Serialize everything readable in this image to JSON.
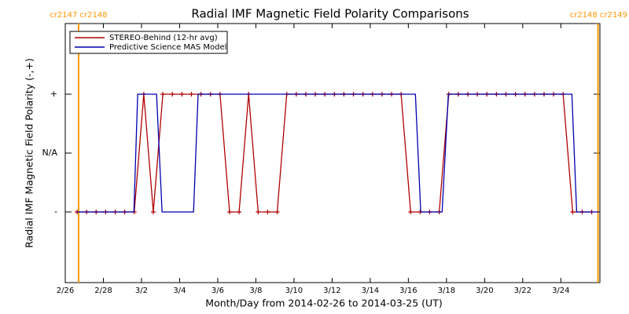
{
  "chart_data": {
    "type": "line",
    "title": "Radial IMF Magnetic Field Polarity Comparisons",
    "xlabel": "Month/Day from 2014-02-26 to 2014-03-25 (UT)",
    "ylabel": "Radial IMF Magnetic Field Polarity (-,+)",
    "xlim": [
      0,
      28.05
    ],
    "ylim": [
      -2.2,
      2.2
    ],
    "xticks": [
      {
        "value": 0,
        "label": "2/26"
      },
      {
        "value": 2,
        "label": "2/28"
      },
      {
        "value": 4,
        "label": "3/2"
      },
      {
        "value": 6,
        "label": "3/4"
      },
      {
        "value": 8,
        "label": "3/6"
      },
      {
        "value": 10,
        "label": "3/8"
      },
      {
        "value": 12,
        "label": "3/10"
      },
      {
        "value": 14,
        "label": "3/12"
      },
      {
        "value": 16,
        "label": "3/14"
      },
      {
        "value": 18,
        "label": "3/16"
      },
      {
        "value": 20,
        "label": "3/18"
      },
      {
        "value": 22,
        "label": "3/20"
      },
      {
        "value": 24,
        "label": "3/22"
      },
      {
        "value": 26,
        "label": "3/24"
      }
    ],
    "yticks": [
      {
        "value": 1,
        "label": "+"
      },
      {
        "value": 0,
        "label": "N/A"
      },
      {
        "value": -1,
        "label": "-"
      }
    ],
    "legend": "upper left",
    "cr_lines": [
      {
        "x": 0.7,
        "label": "cr2147 cr2148"
      },
      {
        "x": 27.95,
        "label": "cr2148 cr2149"
      }
    ],
    "cr_color": "#ff9900",
    "series": [
      {
        "name": "STEREO-Behind (12-hr avg)",
        "color": "#b00000",
        "markers": true,
        "x": [
          0.62,
          1.12,
          1.62,
          2.12,
          2.62,
          3.12,
          3.62,
          4.12,
          4.62,
          5.12,
          5.62,
          6.12,
          6.62,
          7.12,
          7.62,
          8.12,
          8.62,
          9.12,
          9.62,
          10.12,
          10.62,
          11.12,
          11.62,
          12.12,
          12.62,
          13.12,
          13.62,
          14.12,
          14.62,
          15.12,
          15.62,
          16.12,
          16.62,
          17.12,
          17.62,
          18.12,
          18.62,
          19.12,
          19.62,
          20.12,
          20.62,
          21.12,
          21.62,
          22.12,
          22.62,
          23.12,
          23.62,
          24.12,
          24.62,
          25.12,
          25.62,
          26.12,
          26.62,
          27.12,
          27.62
        ],
        "values": [
          -1,
          -1,
          -1,
          -1,
          -1,
          -1,
          -1,
          1,
          -1,
          1,
          1,
          1,
          1,
          1,
          1,
          1,
          -1,
          -1,
          1,
          -1,
          -1,
          -1,
          1,
          1,
          1,
          1,
          1,
          1,
          1,
          1,
          1,
          1,
          1,
          1,
          1,
          -1,
          -1,
          -1,
          -1,
          1,
          1,
          1,
          1,
          1,
          1,
          1,
          1,
          1,
          1,
          1,
          1,
          1,
          -1,
          -1,
          -1
        ]
      },
      {
        "name": "Predictive Science MAS Model",
        "color": "#0000b0",
        "markers": false,
        "x": [
          0.62,
          3.6,
          3.8,
          4.79,
          5.08,
          6.73,
          6.97,
          18.37,
          18.65,
          19.77,
          20.1,
          26.58,
          26.83,
          28.0
        ],
        "values": [
          -1,
          -1,
          1,
          1,
          -1,
          -1,
          1,
          1,
          -1,
          -1,
          1,
          1,
          -1,
          -1
        ]
      }
    ]
  }
}
